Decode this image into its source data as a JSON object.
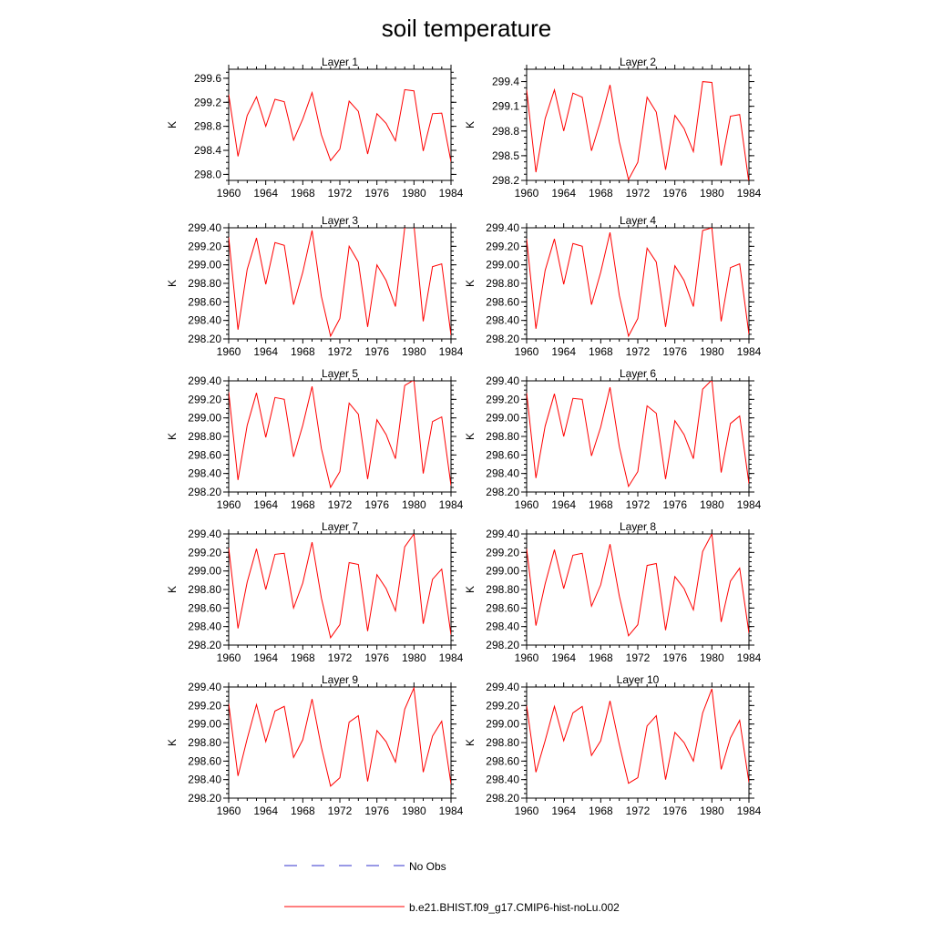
{
  "title": "soil temperature",
  "chart_data": [
    {
      "type": "line",
      "title": "Layer 1",
      "ylabel": "K",
      "xlim": [
        1960,
        1984
      ],
      "ylim": [
        297.9,
        299.75
      ],
      "yticks": [
        "298.0",
        "298.4",
        "298.8",
        "299.2",
        "299.6"
      ],
      "x": [
        1960,
        1961,
        1962,
        1963,
        1964,
        1965,
        1966,
        1967,
        1968,
        1969,
        1970,
        1971,
        1972,
        1973,
        1974,
        1975,
        1976,
        1977,
        1978,
        1979,
        1980,
        1981,
        1982,
        1983,
        1984
      ],
      "series": [
        {
          "name": "b.e21.BHIST.f09_g17.CMIP6-hist-noLu.002",
          "color": "#ff0000",
          "values": [
            299.33,
            298.3,
            298.98,
            299.29,
            298.8,
            299.25,
            299.21,
            298.57,
            298.92,
            299.36,
            298.66,
            298.23,
            298.42,
            299.22,
            299.05,
            298.34,
            299.01,
            298.85,
            298.56,
            299.41,
            299.39,
            298.39,
            299.01,
            299.02,
            298.21
          ]
        }
      ]
    },
    {
      "type": "line",
      "title": "Layer 2",
      "ylabel": "K",
      "xlim": [
        1960,
        1984
      ],
      "ylim": [
        298.2,
        299.55
      ],
      "yticks": [
        "298.2",
        "298.5",
        "298.8",
        "299.1",
        "299.4"
      ],
      "x": [
        1960,
        1961,
        1962,
        1963,
        1964,
        1965,
        1966,
        1967,
        1968,
        1969,
        1970,
        1971,
        1972,
        1973,
        1974,
        1975,
        1976,
        1977,
        1978,
        1979,
        1980,
        1981,
        1982,
        1983,
        1984
      ],
      "series": [
        {
          "name": "b.e21.BHIST.f09_g17.CMIP6-hist-noLu.002",
          "color": "#ff0000",
          "values": [
            299.3,
            298.3,
            298.95,
            299.3,
            298.8,
            299.26,
            299.21,
            298.56,
            298.93,
            299.36,
            298.67,
            298.21,
            298.42,
            299.21,
            299.03,
            298.33,
            298.99,
            298.83,
            298.55,
            299.4,
            299.39,
            298.38,
            298.98,
            299.0,
            298.17
          ]
        }
      ]
    },
    {
      "type": "line",
      "title": "Layer 3",
      "ylabel": "K",
      "xlim": [
        1960,
        1984
      ],
      "ylim": [
        298.2,
        299.4
      ],
      "yticks": [
        "298.20",
        "298.40",
        "298.60",
        "298.80",
        "299.00",
        "299.20",
        "299.40"
      ],
      "x": [
        1960,
        1961,
        1962,
        1963,
        1964,
        1965,
        1966,
        1967,
        1968,
        1969,
        1970,
        1971,
        1972,
        1973,
        1974,
        1975,
        1976,
        1977,
        1978,
        1979,
        1980,
        1981,
        1982,
        1983,
        1984
      ],
      "series": [
        {
          "name": "b.e21.BHIST.f09_g17.CMIP6-hist-noLu.002",
          "color": "#ff0000",
          "values": [
            299.3,
            298.3,
            298.95,
            299.29,
            298.79,
            299.24,
            299.21,
            298.57,
            298.92,
            299.37,
            298.66,
            298.23,
            298.42,
            299.2,
            299.03,
            298.33,
            299.0,
            298.83,
            298.55,
            299.4,
            299.43,
            298.39,
            298.98,
            299.01,
            298.24
          ]
        }
      ]
    },
    {
      "type": "line",
      "title": "Layer 4",
      "ylabel": "K",
      "xlim": [
        1960,
        1984
      ],
      "ylim": [
        298.2,
        299.4
      ],
      "yticks": [
        "298.20",
        "298.40",
        "298.60",
        "298.80",
        "299.00",
        "299.20",
        "299.40"
      ],
      "x": [
        1960,
        1961,
        1962,
        1963,
        1964,
        1965,
        1966,
        1967,
        1968,
        1969,
        1970,
        1971,
        1972,
        1973,
        1974,
        1975,
        1976,
        1977,
        1978,
        1979,
        1980,
        1981,
        1982,
        1983,
        1984
      ],
      "series": [
        {
          "name": "b.e21.BHIST.f09_g17.CMIP6-hist-noLu.002",
          "color": "#ff0000",
          "values": [
            299.28,
            298.31,
            298.94,
            299.28,
            298.79,
            299.23,
            299.2,
            298.57,
            298.92,
            299.35,
            298.67,
            298.23,
            298.42,
            299.18,
            299.03,
            298.33,
            298.99,
            298.83,
            298.55,
            299.37,
            299.4,
            298.39,
            298.97,
            299.01,
            298.25
          ]
        }
      ]
    },
    {
      "type": "line",
      "title": "Layer 5",
      "ylabel": "K",
      "xlim": [
        1960,
        1984
      ],
      "ylim": [
        298.2,
        299.4
      ],
      "yticks": [
        "298.20",
        "298.40",
        "298.60",
        "298.80",
        "299.00",
        "299.20",
        "299.40"
      ],
      "x": [
        1960,
        1961,
        1962,
        1963,
        1964,
        1965,
        1966,
        1967,
        1968,
        1969,
        1970,
        1971,
        1972,
        1973,
        1974,
        1975,
        1976,
        1977,
        1978,
        1979,
        1980,
        1981,
        1982,
        1983,
        1984
      ],
      "series": [
        {
          "name": "b.e21.BHIST.f09_g17.CMIP6-hist-noLu.002",
          "color": "#ff0000",
          "values": [
            299.28,
            298.33,
            298.92,
            299.27,
            298.79,
            299.22,
            299.2,
            298.58,
            298.92,
            299.34,
            298.67,
            298.25,
            298.42,
            299.16,
            299.04,
            298.34,
            298.98,
            298.82,
            298.56,
            299.35,
            299.41,
            298.4,
            298.96,
            299.01,
            298.27
          ]
        }
      ]
    },
    {
      "type": "line",
      "title": "Layer 6",
      "ylabel": "K",
      "xlim": [
        1960,
        1984
      ],
      "ylim": [
        298.2,
        299.4
      ],
      "yticks": [
        "298.20",
        "298.40",
        "298.60",
        "298.80",
        "299.00",
        "299.20",
        "299.40"
      ],
      "x": [
        1960,
        1961,
        1962,
        1963,
        1964,
        1965,
        1966,
        1967,
        1968,
        1969,
        1970,
        1971,
        1972,
        1973,
        1974,
        1975,
        1976,
        1977,
        1978,
        1979,
        1980,
        1981,
        1982,
        1983,
        1984
      ],
      "series": [
        {
          "name": "b.e21.BHIST.f09_g17.CMIP6-hist-noLu.002",
          "color": "#ff0000",
          "values": [
            299.27,
            298.35,
            298.91,
            299.26,
            298.8,
            299.21,
            299.2,
            298.59,
            298.9,
            299.33,
            298.69,
            298.26,
            298.42,
            299.13,
            299.05,
            298.34,
            298.97,
            298.82,
            298.56,
            299.31,
            299.41,
            298.41,
            298.94,
            299.02,
            298.29
          ]
        }
      ]
    },
    {
      "type": "line",
      "title": "Layer 7",
      "ylabel": "K",
      "xlim": [
        1960,
        1984
      ],
      "ylim": [
        298.2,
        299.4
      ],
      "yticks": [
        "298.20",
        "298.40",
        "298.60",
        "298.80",
        "299.00",
        "299.20",
        "299.40"
      ],
      "x": [
        1960,
        1961,
        1962,
        1963,
        1964,
        1965,
        1966,
        1967,
        1968,
        1969,
        1970,
        1971,
        1972,
        1973,
        1974,
        1975,
        1976,
        1977,
        1978,
        1979,
        1980,
        1981,
        1982,
        1983,
        1984
      ],
      "series": [
        {
          "name": "b.e21.BHIST.f09_g17.CMIP6-hist-noLu.002",
          "color": "#ff0000",
          "values": [
            299.25,
            298.38,
            298.88,
            299.24,
            298.8,
            299.18,
            299.19,
            298.6,
            298.87,
            299.31,
            298.71,
            298.28,
            298.42,
            299.09,
            299.07,
            298.35,
            298.96,
            298.81,
            298.57,
            299.26,
            299.4,
            298.43,
            298.91,
            299.02,
            298.31
          ]
        }
      ]
    },
    {
      "type": "line",
      "title": "Layer 8",
      "ylabel": "K",
      "xlim": [
        1960,
        1984
      ],
      "ylim": [
        298.2,
        299.4
      ],
      "yticks": [
        "298.20",
        "298.40",
        "298.60",
        "298.80",
        "299.00",
        "299.20",
        "299.40"
      ],
      "x": [
        1960,
        1961,
        1962,
        1963,
        1964,
        1965,
        1966,
        1967,
        1968,
        1969,
        1970,
        1971,
        1972,
        1973,
        1974,
        1975,
        1976,
        1977,
        1978,
        1979,
        1980,
        1981,
        1982,
        1983,
        1984
      ],
      "series": [
        {
          "name": "b.e21.BHIST.f09_g17.CMIP6-hist-noLu.002",
          "color": "#ff0000",
          "values": [
            299.24,
            298.41,
            298.86,
            299.23,
            298.81,
            299.17,
            299.19,
            298.62,
            298.85,
            299.29,
            298.73,
            298.3,
            298.42,
            299.06,
            299.08,
            298.36,
            298.94,
            298.81,
            298.58,
            299.21,
            299.4,
            298.45,
            298.89,
            299.03,
            298.33
          ]
        }
      ]
    },
    {
      "type": "line",
      "title": "Layer 9",
      "ylabel": "K",
      "xlim": [
        1960,
        1984
      ],
      "ylim": [
        298.2,
        299.4
      ],
      "yticks": [
        "298.20",
        "298.40",
        "298.60",
        "298.80",
        "299.00",
        "299.20",
        "299.40"
      ],
      "x": [
        1960,
        1961,
        1962,
        1963,
        1964,
        1965,
        1966,
        1967,
        1968,
        1969,
        1970,
        1971,
        1972,
        1973,
        1974,
        1975,
        1976,
        1977,
        1978,
        1979,
        1980,
        1981,
        1982,
        1983,
        1984
      ],
      "series": [
        {
          "name": "b.e21.BHIST.f09_g17.CMIP6-hist-noLu.002",
          "color": "#ff0000",
          "values": [
            299.22,
            298.44,
            298.84,
            299.21,
            298.81,
            299.14,
            299.19,
            298.64,
            298.83,
            299.27,
            298.75,
            298.33,
            298.42,
            299.02,
            299.09,
            298.38,
            298.93,
            298.81,
            298.59,
            299.16,
            299.39,
            298.48,
            298.87,
            299.03,
            298.35
          ]
        }
      ]
    },
    {
      "type": "line",
      "title": "Layer 10",
      "ylabel": "K",
      "xlim": [
        1960,
        1984
      ],
      "ylim": [
        298.2,
        299.4
      ],
      "yticks": [
        "298.20",
        "298.40",
        "298.60",
        "298.80",
        "299.00",
        "299.20",
        "299.40"
      ],
      "x": [
        1960,
        1961,
        1962,
        1963,
        1964,
        1965,
        1966,
        1967,
        1968,
        1969,
        1970,
        1971,
        1972,
        1973,
        1974,
        1975,
        1976,
        1977,
        1978,
        1979,
        1980,
        1981,
        1982,
        1983,
        1984
      ],
      "series": [
        {
          "name": "b.e21.BHIST.f09_g17.CMIP6-hist-noLu.002",
          "color": "#ff0000",
          "values": [
            299.2,
            298.48,
            298.82,
            299.19,
            298.82,
            299.12,
            299.19,
            298.66,
            298.82,
            299.25,
            298.78,
            298.36,
            298.42,
            298.98,
            299.09,
            298.4,
            298.91,
            298.8,
            298.6,
            299.12,
            299.38,
            298.51,
            298.85,
            299.04,
            298.37
          ]
        }
      ]
    }
  ],
  "xticks": [
    "1960",
    "1964",
    "1968",
    "1972",
    "1976",
    "1980",
    "1984"
  ],
  "legend": [
    {
      "label": "No Obs",
      "style": "dashed",
      "color": "#3333cc"
    },
    {
      "label": "b.e21.BHIST.f09_g17.CMIP6-hist-noLu.002",
      "style": "solid",
      "color": "#ff0000"
    }
  ]
}
